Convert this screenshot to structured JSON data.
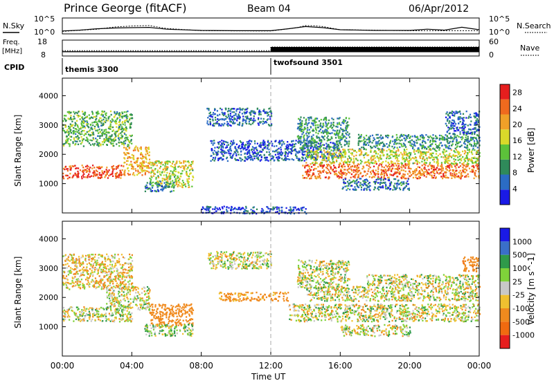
{
  "header": {
    "station": "Prince George (fitACF)",
    "beam": "Beam 04",
    "date": "06/Apr/2012"
  },
  "labels": {
    "nsky": "N.Sky",
    "nsearch": "N.Search",
    "freq": "Freq.",
    "mhz": "[MHz]",
    "cpid": "CPID",
    "nave": "Nave",
    "noise_tick_top": "10^5",
    "noise_tick_bottom": "10^0",
    "freq_tick_top": "18",
    "freq_tick_bottom": "8",
    "nave_tick_top": "60",
    "nave_tick_bottom": "0"
  },
  "chart_data": [
    {
      "type": "line",
      "title": "N.Sky / N.Search",
      "ylabel": "N.Sky",
      "ylabel_right": "N.Search",
      "yscale": "log",
      "ylim": [
        1,
        100000
      ],
      "x_range_hours": [
        0,
        24
      ],
      "series": [
        {
          "name": "N.Sky",
          "x": [
            0,
            1,
            2,
            3,
            4,
            5,
            6,
            8,
            10,
            12,
            13,
            14,
            15,
            16,
            18,
            20,
            21,
            22,
            23,
            24
          ],
          "values": [
            8,
            15,
            40,
            70,
            90,
            110,
            30,
            12,
            10,
            10,
            40,
            200,
            90,
            20,
            12,
            12,
            30,
            15,
            120,
            20
          ]
        },
        {
          "name": "N.Search",
          "x": [
            0,
            2,
            3,
            4,
            5,
            6,
            8,
            12,
            13.5,
            14,
            14.5,
            15,
            16,
            20,
            24
          ],
          "values": [
            6,
            30,
            150,
            300,
            400,
            50,
            10,
            8,
            80,
            400,
            350,
            200,
            20,
            10,
            10
          ]
        }
      ]
    },
    {
      "type": "line",
      "title": "Freq / Nave",
      "ylabel": "Freq. [MHz]",
      "ylabel_right": "Nave",
      "ylim": [
        8,
        18
      ],
      "ylim_right": [
        0,
        60
      ],
      "x_range_hours": [
        0,
        24
      ],
      "series": [
        {
          "name": "Freq.",
          "x": [
            0,
            12,
            12,
            24
          ],
          "values": [
            10.7,
            10.7,
            10.7,
            10.7
          ]
        },
        {
          "name": "Nave",
          "x": [
            0,
            12,
            12,
            24
          ],
          "values": [
            20,
            20,
            34,
            34
          ]
        }
      ]
    },
    {
      "type": "table",
      "title": "CPID",
      "categories": [
        "themis 3300",
        "twofsound 3501"
      ],
      "x": [
        0,
        12
      ]
    },
    {
      "type": "heatmap",
      "title": "Power",
      "xlabel": "",
      "ylabel": "Slant Range [km]",
      "ylim": [
        0,
        4600
      ],
      "yticks": [
        1000,
        2000,
        3000,
        4000
      ],
      "colorbar_label": "Power [dB]",
      "colorbar_ticks": [
        4,
        8,
        12,
        16,
        20,
        24,
        28
      ],
      "colorbar_range": [
        0,
        30
      ],
      "regions": [
        {
          "t0": 0.0,
          "t1": 3.5,
          "r0": 1200,
          "r1": 1650,
          "level": 26
        },
        {
          "t0": 3.5,
          "t1": 5.0,
          "r0": 1300,
          "r1": 2300,
          "level": 20
        },
        {
          "t0": 0.0,
          "t1": 4.0,
          "r0": 2300,
          "r1": 3500,
          "level": 12
        },
        {
          "t0": 5.0,
          "t1": 7.5,
          "r0": 900,
          "r1": 1800,
          "level": 16
        },
        {
          "t0": 4.7,
          "t1": 6.5,
          "r0": 750,
          "r1": 1100,
          "level": 8
        },
        {
          "t0": 8.3,
          "t1": 12.0,
          "r0": 3000,
          "r1": 3600,
          "level": 6
        },
        {
          "t0": 8.5,
          "t1": 16.0,
          "r0": 1800,
          "r1": 2500,
          "level": 5
        },
        {
          "t0": 13.8,
          "t1": 24.0,
          "r0": 1200,
          "r1": 1700,
          "level": 24
        },
        {
          "t0": 14.0,
          "t1": 24.0,
          "r0": 1700,
          "r1": 2200,
          "level": 16
        },
        {
          "t0": 13.5,
          "t1": 16.5,
          "r0": 2200,
          "r1": 3300,
          "level": 10
        },
        {
          "t0": 17.0,
          "t1": 24.0,
          "r0": 2200,
          "r1": 2700,
          "level": 9
        },
        {
          "t0": 16.0,
          "t1": 20.0,
          "r0": 800,
          "r1": 1200,
          "level": 7
        },
        {
          "t0": 22.0,
          "t1": 24.0,
          "r0": 2700,
          "r1": 3500,
          "level": 6
        },
        {
          "t0": 8.0,
          "t1": 14.0,
          "r0": 0,
          "r1": 250,
          "level": 4
        }
      ]
    },
    {
      "type": "heatmap",
      "title": "Velocity",
      "xlabel": "Time UT",
      "ylabel": "Slant Range [km]",
      "ylim": [
        0,
        4600
      ],
      "yticks": [
        1000,
        2000,
        3000,
        4000
      ],
      "xticks": [
        "00:00",
        "04:00",
        "08:00",
        "12:00",
        "16:00",
        "20:00",
        "00:00"
      ],
      "colorbar_label": "Velocity [m s^-1]",
      "colorbar_ticks": [
        1000,
        500,
        100,
        25,
        -25,
        -100,
        -500,
        -1000
      ],
      "regions": [
        {
          "t0": 0.0,
          "t1": 4.0,
          "r0": 1200,
          "r1": 1700,
          "vel": 0
        },
        {
          "t0": 2.5,
          "t1": 5.0,
          "r0": 1600,
          "r1": 2400,
          "vel": 0
        },
        {
          "t0": 0.0,
          "t1": 4.0,
          "r0": 2300,
          "r1": 3500,
          "vel": -50
        },
        {
          "t0": 5.0,
          "t1": 7.5,
          "r0": 1050,
          "r1": 1800,
          "vel": -300
        },
        {
          "t0": 4.7,
          "t1": 7.5,
          "r0": 700,
          "r1": 1100,
          "vel": 60
        },
        {
          "t0": 8.3,
          "t1": 12.0,
          "r0": 3000,
          "r1": 3600,
          "vel": 0
        },
        {
          "t0": 9.0,
          "t1": 13.0,
          "r0": 1900,
          "r1": 2200,
          "vel": -200
        },
        {
          "t0": 13.0,
          "t1": 24.0,
          "r0": 1200,
          "r1": 1800,
          "vel": 0
        },
        {
          "t0": 14.0,
          "t1": 24.0,
          "r0": 1900,
          "r1": 2400,
          "vel": 0
        },
        {
          "t0": 13.5,
          "t1": 16.5,
          "r0": 2300,
          "r1": 3300,
          "vel": 0
        },
        {
          "t0": 17.5,
          "t1": 24.0,
          "r0": 2400,
          "r1": 2800,
          "vel": 0
        },
        {
          "t0": 16.0,
          "t1": 20.0,
          "r0": 700,
          "r1": 1100,
          "vel": 0
        },
        {
          "t0": 23.0,
          "t1": 24.0,
          "r0": 2900,
          "r1": 3400,
          "vel": -400
        }
      ]
    }
  ],
  "colors": {
    "power_scale": [
      "#1a1ae6",
      "#2b6cc4",
      "#2f8a5a",
      "#5cc23a",
      "#d9d92a",
      "#f0a028",
      "#f06a1e",
      "#e61e1e"
    ],
    "velocity_scale": [
      "#1a1ae6",
      "#3a6fc9",
      "#2f9a4a",
      "#7fd23a",
      "#c8c8c8",
      "#f0c030",
      "#f08a1e",
      "#f06a10",
      "#e61e1e"
    ],
    "ground_scatter": "#c8c8c8"
  }
}
